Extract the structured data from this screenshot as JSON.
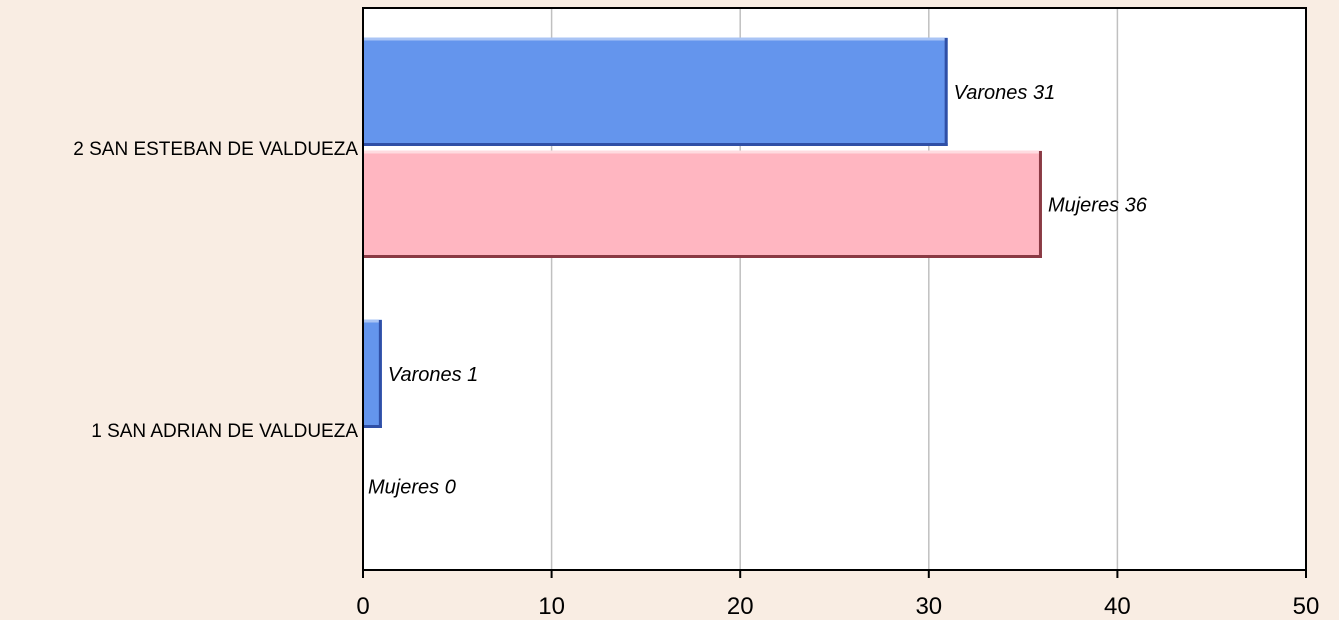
{
  "chart_data": {
    "type": "bar",
    "orientation": "horizontal",
    "categories": [
      "2 SAN ESTEBAN DE VALDUEZA",
      "1 SAN ADRIAN DE VALDUEZA"
    ],
    "series": [
      {
        "name": "Varones",
        "values": [
          31,
          1
        ],
        "color": "#6495ed",
        "labels": [
          "Varones 31",
          "Varones 1"
        ]
      },
      {
        "name": "Mujeres",
        "values": [
          36,
          0
        ],
        "color": "#ffb6c1",
        "labels": [
          "Mujeres 36",
          "Mujeres 0"
        ]
      }
    ],
    "xlim": [
      0,
      50
    ],
    "xticks": [
      0,
      10,
      20,
      30,
      40,
      50
    ],
    "grid": true,
    "title": "",
    "xlabel": "",
    "ylabel": ""
  },
  "colors": {
    "background": "#f9ede3",
    "plot_background": "#ffffff",
    "grid": "#c0c0c0"
  }
}
